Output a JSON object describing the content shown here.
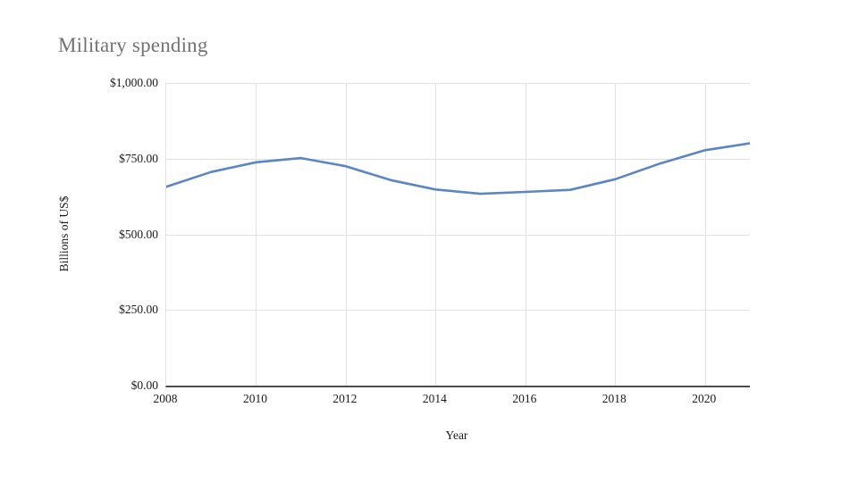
{
  "window": {
    "background": "#ffffff"
  },
  "chart_data": {
    "type": "line",
    "title": "Military spending",
    "xlabel": "Year",
    "ylabel": "Billions of US$",
    "x": [
      2008,
      2009,
      2010,
      2011,
      2012,
      2013,
      2014,
      2015,
      2016,
      2017,
      2018,
      2019,
      2020,
      2021
    ],
    "series": [
      {
        "name": "Military spending",
        "values": [
          657,
          706,
          738,
          752,
          725,
          679,
          648,
          634,
          640,
          647,
          682,
          734,
          778,
          801
        ]
      }
    ],
    "x_ticks": [
      2008,
      2010,
      2012,
      2014,
      2016,
      2018,
      2020
    ],
    "y_ticks": [
      {
        "value": 0,
        "label": "$0.00"
      },
      {
        "value": 250,
        "label": "$250.00"
      },
      {
        "value": 500,
        "label": "$500.00"
      },
      {
        "value": 750,
        "label": "$750.00"
      },
      {
        "value": 1000,
        "label": "$1,000.00"
      }
    ],
    "xlim": [
      2008,
      2021
    ],
    "ylim": [
      0,
      1000
    ],
    "grid": true,
    "legend_position": "none",
    "line_color": "#5b86c4",
    "grid_color": "#e2e2e2",
    "axis_line_color": "#4d4d4d",
    "title_color": "#737373",
    "tick_label_color": "#1a1a1a"
  }
}
